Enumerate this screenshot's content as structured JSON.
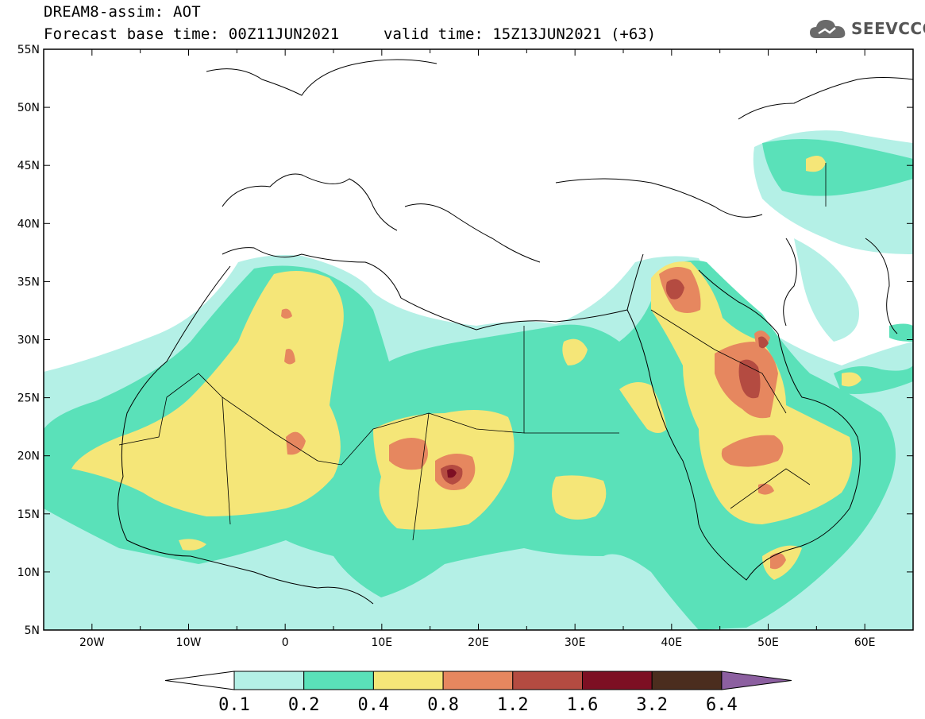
{
  "title": {
    "line1": "DREAM8-assim: AOT",
    "line2": "Forecast base time: 00Z11JUN2021",
    "valid": "valid time: 15Z13JUN2021 (+63)"
  },
  "logo": {
    "text": "SEEVCCC",
    "icon": "cloud-icon"
  },
  "map": {
    "lon_range": [
      -25,
      65
    ],
    "lat_range": [
      5,
      55
    ],
    "lat_ticks": [
      {
        "v": 55,
        "label": "55N"
      },
      {
        "v": 50,
        "label": "50N"
      },
      {
        "v": 45,
        "label": "45N"
      },
      {
        "v": 40,
        "label": "40N"
      },
      {
        "v": 35,
        "label": "35N"
      },
      {
        "v": 30,
        "label": "30N"
      },
      {
        "v": 25,
        "label": "25N"
      },
      {
        "v": 20,
        "label": "20N"
      },
      {
        "v": 15,
        "label": "15N"
      },
      {
        "v": 10,
        "label": "10N"
      },
      {
        "v": 5,
        "label": "5N"
      }
    ],
    "lon_ticks": [
      {
        "v": -20,
        "label": "20W"
      },
      {
        "v": -10,
        "label": "10W"
      },
      {
        "v": 0,
        "label": "0"
      },
      {
        "v": 10,
        "label": "10E"
      },
      {
        "v": 20,
        "label": "20E"
      },
      {
        "v": 30,
        "label": "30E"
      },
      {
        "v": 40,
        "label": "40E"
      },
      {
        "v": 50,
        "label": "50E"
      },
      {
        "v": 60,
        "label": "60E"
      }
    ]
  },
  "colorbar": {
    "levels": [
      "0.1",
      "0.2",
      "0.4",
      "0.8",
      "1.2",
      "1.6",
      "3.2",
      "6.4"
    ],
    "colors": [
      "#ffffff",
      "#b4f0e6",
      "#5ae1b9",
      "#f5e678",
      "#e6875f",
      "#b44b41",
      "#7d0f23",
      "#4b2d1e",
      "#8c5fa0"
    ]
  }
}
